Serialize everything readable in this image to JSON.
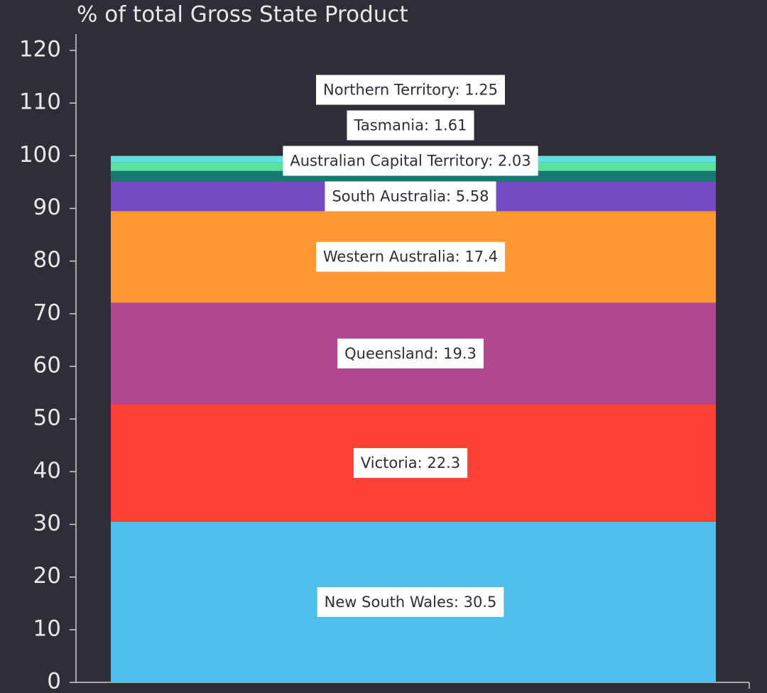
{
  "chart_data": {
    "type": "bar",
    "stacked": true,
    "ylabel": "% of total Gross State Product",
    "ylim": [
      0,
      120
    ],
    "yticks": [
      0,
      10,
      20,
      30,
      40,
      50,
      60,
      70,
      80,
      90,
      100,
      110,
      120
    ],
    "series": [
      {
        "color": "#4ebeeb",
        "values": [
          30.5
        ],
        "value_labels": [
          "New South Wales: 30.5"
        ]
      },
      {
        "color": "#ff4136",
        "values": [
          22.3
        ],
        "value_labels": [
          "Victoria: 22.3"
        ]
      },
      {
        "color": "#b04891",
        "values": [
          19.3
        ],
        "value_labels": [
          "Queensland: 19.3"
        ]
      },
      {
        "color": "#ff9830",
        "values": [
          17.4
        ],
        "value_labels": [
          "Western Australia: 17.4"
        ]
      },
      {
        "color": "#724bc3",
        "values": [
          5.58
        ],
        "value_labels": [
          "South Australia: 5.58"
        ]
      },
      {
        "color": "#167a70",
        "values": [
          2.03
        ],
        "value_labels": [
          "Australian Capital Territory: 2.03"
        ]
      },
      {
        "color": "#57e39d",
        "values": [
          1.61
        ],
        "value_labels": [
          "Tasmania: 1.61"
        ]
      },
      {
        "color": "#5fe0e0",
        "values": [
          1.25
        ],
        "value_labels": [
          "Northern Territory: 1.25"
        ]
      }
    ]
  }
}
